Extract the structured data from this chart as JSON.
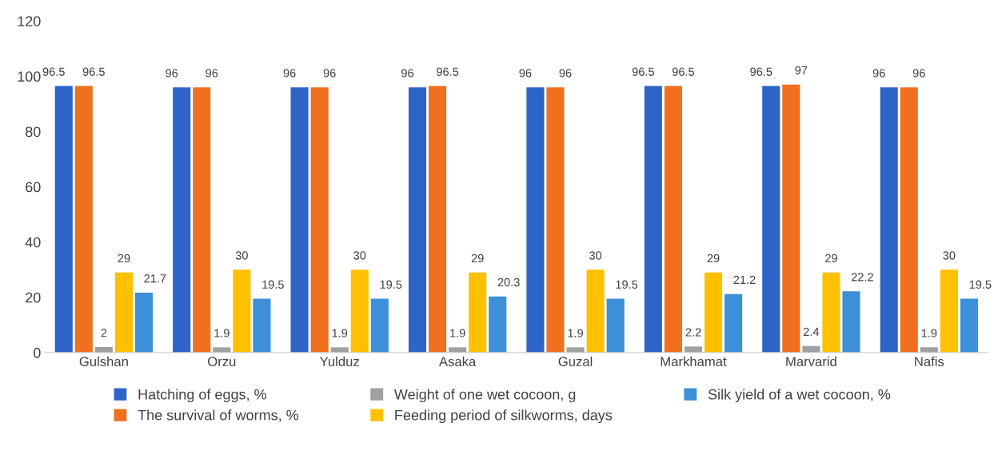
{
  "chart_data": {
    "type": "bar",
    "categories": [
      "Gulshan",
      "Orzu",
      "Yulduz",
      "Asaka",
      "Guzal",
      "Markhamat",
      "Marvarid",
      "Nafis"
    ],
    "series": [
      {
        "name": "Hatching of eggs, %",
        "color": "#2e63c8",
        "values": [
          96.5,
          96,
          96,
          96,
          96,
          96.5,
          96.5,
          96
        ]
      },
      {
        "name": "The survival of worms, %",
        "color": "#f07020",
        "values": [
          96.5,
          96,
          96,
          96.5,
          96,
          96.5,
          97,
          96
        ]
      },
      {
        "name": "Weight of one wet cocoon, g",
        "color": "#a0a0a0",
        "values": [
          2,
          1.9,
          1.9,
          1.9,
          1.9,
          2.2,
          2.4,
          1.9
        ]
      },
      {
        "name": "Feeding period of silkworms, days",
        "color": "#ffc000",
        "values": [
          29,
          30,
          30,
          29,
          30,
          29,
          29,
          30
        ]
      },
      {
        "name": "Silk yield of a wet cocoon, %",
        "color": "#3d8fd8",
        "values": [
          21.7,
          19.5,
          19.5,
          20.3,
          19.5,
          21.2,
          22.2,
          19.5
        ]
      }
    ],
    "ylim": [
      0,
      120
    ],
    "yticks": [
      0,
      20,
      40,
      60,
      80,
      100,
      120
    ],
    "data_labels": true,
    "grid": false,
    "legend": "bottom"
  }
}
